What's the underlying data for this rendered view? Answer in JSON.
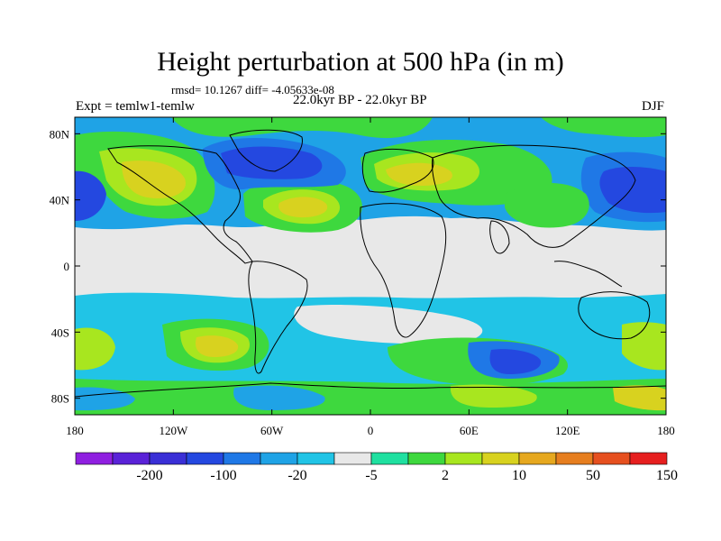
{
  "title": "Height perturbation at 500 hPa (in m)",
  "stats": "rmsd= 10.1267 diff= -4.05633e-08",
  "experiment": "Expt = temlw1-temlw",
  "period": "22.0kyr BP - 22.0kyr BP",
  "season": "DJF",
  "lat_ticks": [
    "80N",
    "40N",
    "0",
    "40S",
    "80S"
  ],
  "lon_ticks": [
    "180",
    "120W",
    "60W",
    "0",
    "60E",
    "120E",
    "180"
  ],
  "colorbar": {
    "colors": [
      "#8f1fe0",
      "#5a22d8",
      "#3a2fd6",
      "#2448e0",
      "#1f78e6",
      "#1fa3e6",
      "#21c4e6",
      "#e8e8e8",
      "#1fe0a0",
      "#3ed83e",
      "#a8e61f",
      "#d8d21f",
      "#e6a81f",
      "#e67e1f",
      "#e6501f",
      "#e61f1f"
    ],
    "labels": [
      "-200",
      "-100",
      "-20",
      "-5",
      "2",
      "10",
      "50",
      "150"
    ]
  },
  "field_palette": {
    "land_outline": "#000000",
    "zero_band": "#e8e8e8",
    "gap": "#ffffff"
  }
}
